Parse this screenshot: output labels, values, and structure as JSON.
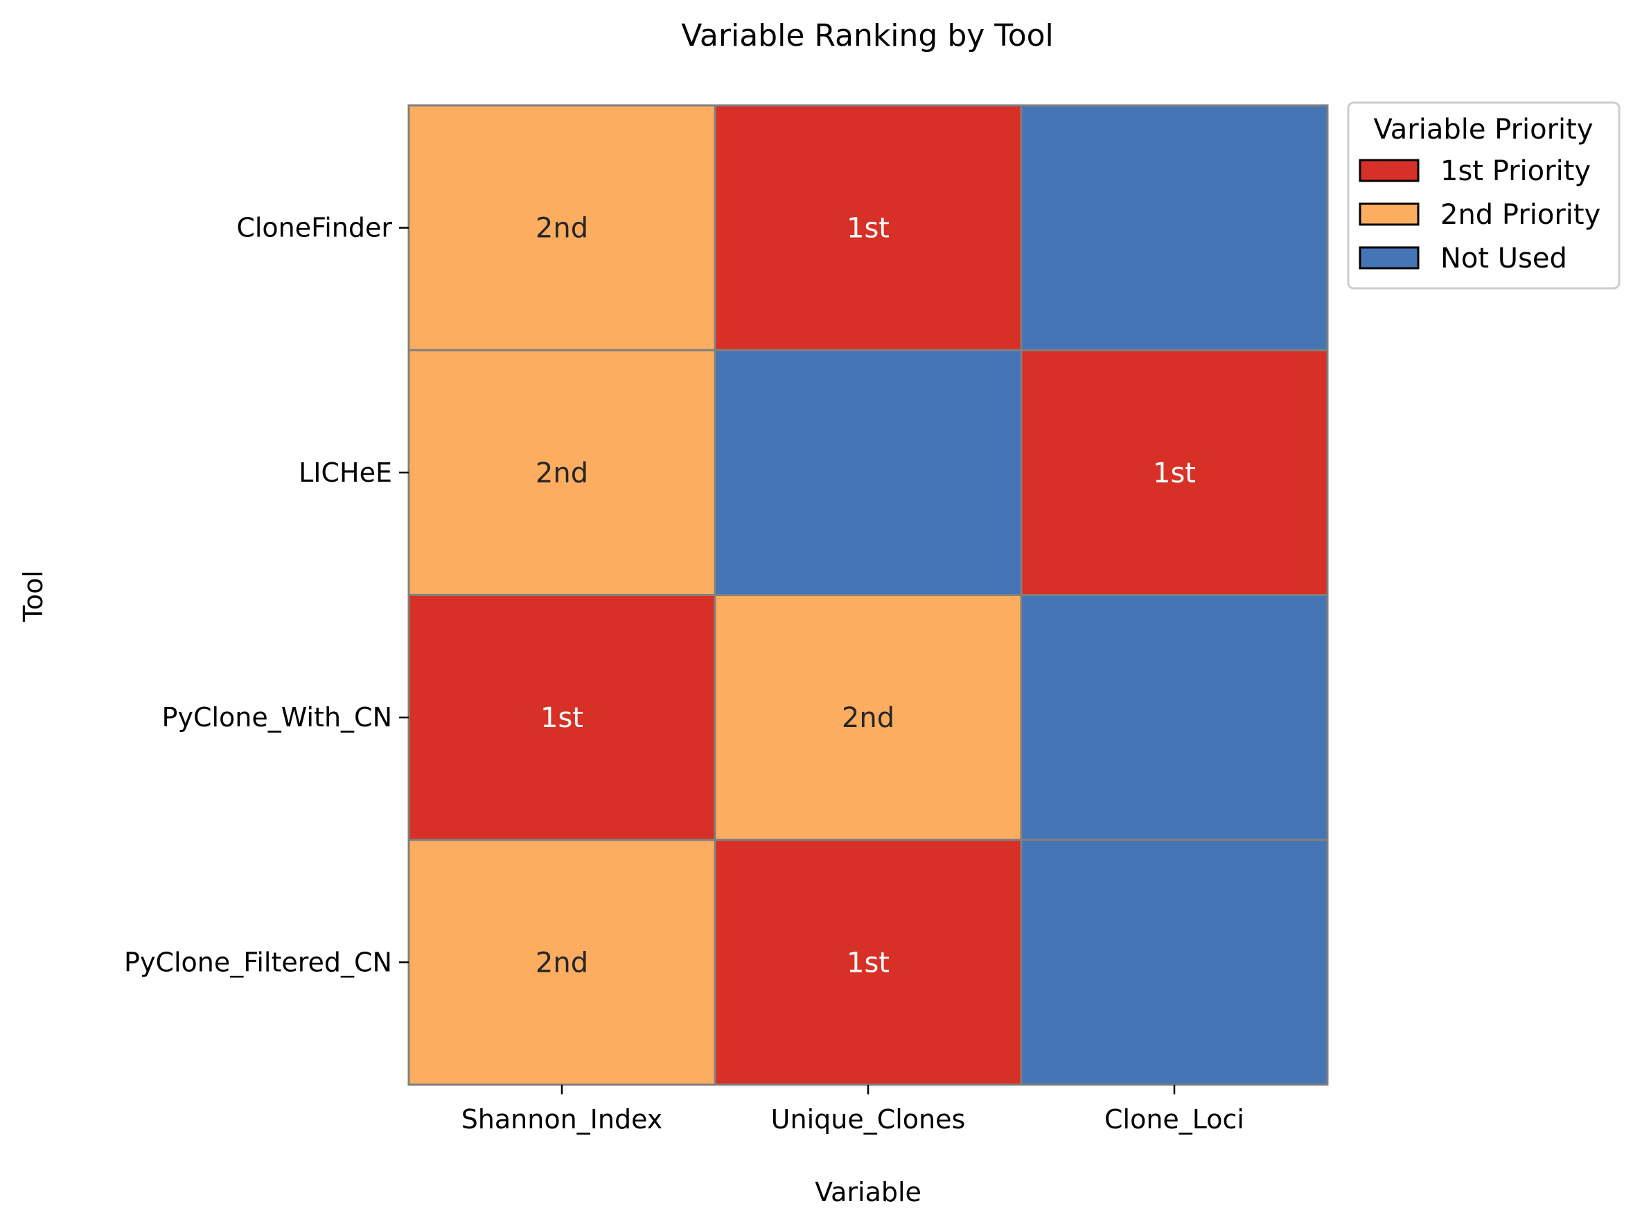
{
  "chart_data": {
    "type": "heatmap",
    "title": "Variable Ranking by Tool",
    "xlabel": "Variable",
    "ylabel": "Tool",
    "x_categories": [
      "Shannon_Index",
      "Unique_Clones",
      "Clone_Loci"
    ],
    "y_categories": [
      "CloneFinder",
      "LICHeE",
      "PyClone_With_CN",
      "PyClone_Filtered_CN"
    ],
    "values": [
      [
        "2nd",
        "1st",
        ""
      ],
      [
        "2nd",
        "",
        "1st"
      ],
      [
        "1st",
        "2nd",
        ""
      ],
      [
        "2nd",
        "1st",
        ""
      ]
    ],
    "category_map": {
      "1st": "first",
      "2nd": "second",
      "": "none"
    },
    "colors": {
      "first": "#d73027",
      "second": "#fcad60",
      "none": "#4575b4",
      "grid": "#808080"
    },
    "text_colors": {
      "first": "#ffffff",
      "second": "#262626",
      "none": "#ffffff"
    },
    "legend": {
      "title": "Variable Priority",
      "placement": "outside-right-top",
      "entries": [
        {
          "label": "1st Priority",
          "key": "first"
        },
        {
          "label": "2nd Priority",
          "key": "second"
        },
        {
          "label": "Not Used",
          "key": "none"
        }
      ]
    },
    "grid": false
  }
}
